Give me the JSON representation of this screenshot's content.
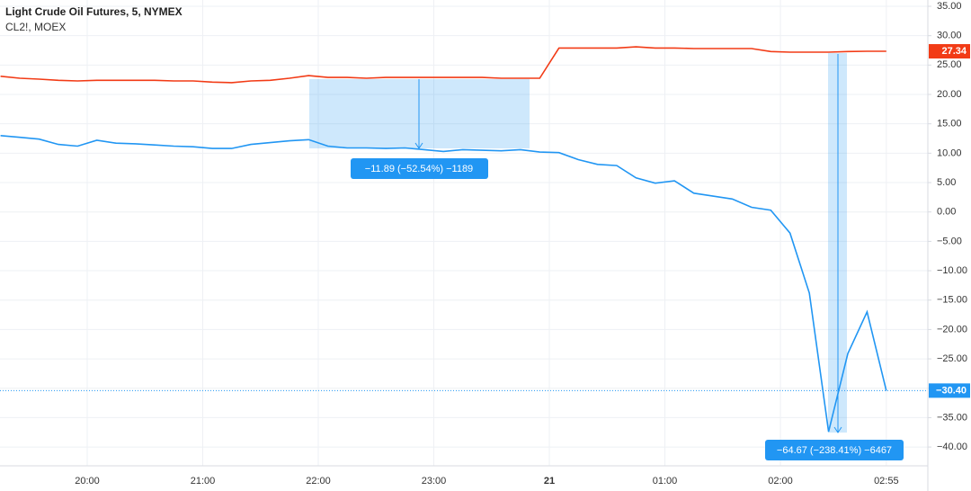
{
  "chart_data": {
    "type": "line",
    "x": [
      19.25,
      19.4167,
      19.5833,
      19.75,
      19.9167,
      20.0833,
      20.25,
      20.4167,
      20.5833,
      20.75,
      20.9167,
      21.0833,
      21.25,
      21.4167,
      21.5833,
      21.75,
      21.9167,
      22.0833,
      22.25,
      22.4167,
      22.5833,
      22.75,
      22.9167,
      23.0833,
      23.25,
      23.4167,
      23.5833,
      23.75,
      23.9167,
      24.0833,
      24.25,
      24.4167,
      24.5833,
      24.75,
      24.9167,
      25.0833,
      25.25,
      25.4167,
      25.5833,
      25.75,
      25.9167,
      26.0833,
      26.25,
      26.4167,
      26.5833,
      26.75,
      26.9167
    ],
    "series": [
      {
        "name": "Light Crude Oil Futures, 5, NYMEX",
        "color": "#2196f3",
        "values": [
          13.0,
          12.7,
          12.4,
          11.5,
          11.2,
          12.2,
          11.7,
          11.6,
          11.4,
          11.2,
          11.1,
          10.8,
          10.8,
          11.5,
          11.8,
          12.1,
          12.3,
          11.2,
          10.9,
          10.9,
          10.8,
          10.9,
          10.6,
          10.3,
          10.6,
          10.5,
          10.4,
          10.6,
          10.2,
          10.1,
          8.9,
          8.1,
          7.9,
          5.8,
          4.9,
          5.3,
          3.2,
          2.7,
          2.2,
          0.8,
          0.3,
          -3.6,
          -13.8,
          -37.4,
          -24.1,
          -17.0,
          -30.4
        ]
      },
      {
        "name": "CL2!, MOEX",
        "color": "#f23b16",
        "values": [
          23.1,
          22.75,
          22.6,
          22.4,
          22.3,
          22.4,
          22.4,
          22.4,
          22.4,
          22.3,
          22.3,
          22.1,
          22.0,
          22.3,
          22.4,
          22.75,
          23.2,
          22.9,
          22.9,
          22.75,
          22.9,
          22.9,
          22.9,
          22.9,
          22.9,
          22.9,
          22.75,
          22.75,
          22.75,
          27.9,
          27.9,
          27.9,
          27.9,
          28.1,
          27.9,
          27.9,
          27.8,
          27.8,
          27.8,
          27.8,
          27.3,
          27.2,
          27.2,
          27.2,
          27.3,
          27.34,
          27.34
        ]
      }
    ],
    "last_price_labels": [
      "−30.40",
      "27.34"
    ],
    "annotations": [
      "−11.89 (−52.54%) −1189",
      "−64.67 (−238.41%) −6467"
    ],
    "xlim": [
      19.245,
      27.276
    ],
    "xticks": [
      {
        "value": 20,
        "label": "20:00"
      },
      {
        "value": 21,
        "label": "21:00"
      },
      {
        "value": 22,
        "label": "22:00"
      },
      {
        "value": 23,
        "label": "23:00"
      },
      {
        "value": 24,
        "label": "21"
      },
      {
        "value": 25,
        "label": "01:00"
      },
      {
        "value": 26,
        "label": "02:00"
      },
      {
        "value": 26.9167,
        "label": "02:55"
      }
    ],
    "ylim": [
      -43.2,
      36.07
    ],
    "yticks": [
      {
        "value": 35,
        "label": "35.00"
      },
      {
        "value": 30,
        "label": "30.00"
      },
      {
        "value": 25,
        "label": "25.00"
      },
      {
        "value": 20,
        "label": "20.00"
      },
      {
        "value": 15,
        "label": "15.00"
      },
      {
        "value": 10,
        "label": "10.00"
      },
      {
        "value": 5,
        "label": "5.00"
      },
      {
        "value": 0,
        "label": "0.00"
      },
      {
        "value": -5,
        "label": "−5.00"
      },
      {
        "value": -10,
        "label": "−10.00"
      },
      {
        "value": -15,
        "label": "−15.00"
      },
      {
        "value": -20,
        "label": "−20.00"
      },
      {
        "value": -25,
        "label": "−25.00"
      },
      {
        "value": -30,
        "label": "−30.00"
      },
      {
        "value": -35,
        "label": "−35.00"
      },
      {
        "value": -40,
        "label": "−40.00"
      }
    ],
    "grid": true
  }
}
